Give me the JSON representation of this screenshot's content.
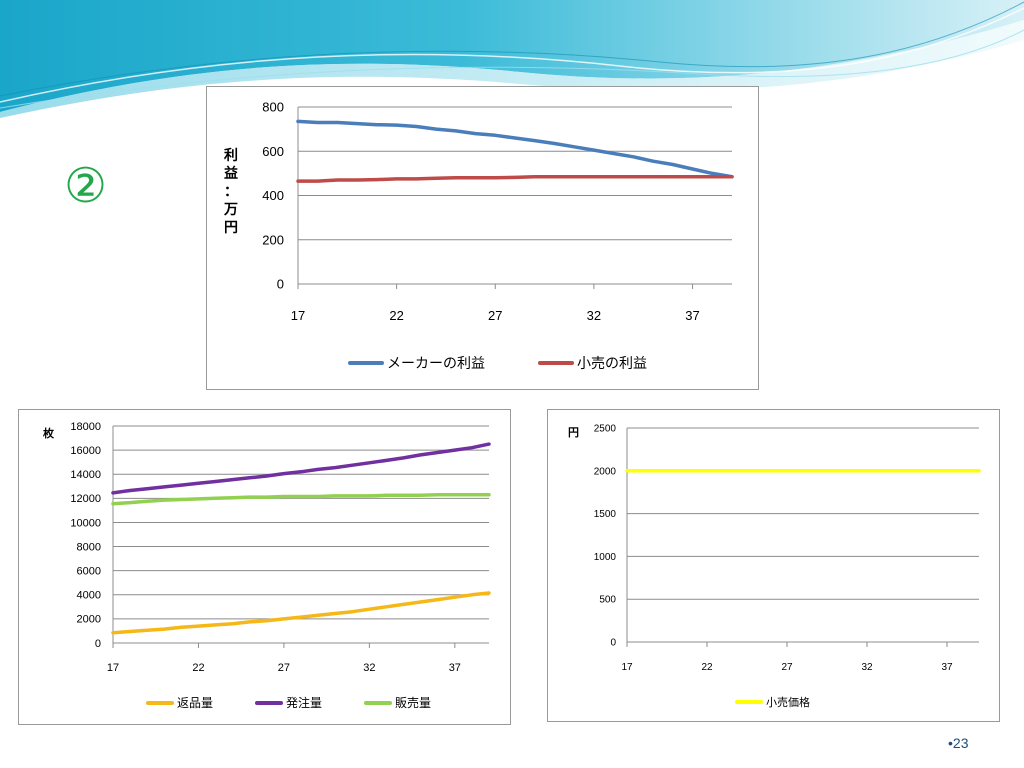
{
  "slide": {
    "marker": "②",
    "page_number": "•23",
    "accent_color": "#22a84a",
    "banner_colors": [
      "#1aa6c9",
      "#7fd3e6",
      "#d8f1f7"
    ]
  },
  "chart_data": [
    {
      "type": "line",
      "ylabel": "利益：万円",
      "ylim": [
        0,
        800
      ],
      "yticks": [
        0,
        200,
        400,
        600,
        800
      ],
      "xticks": [
        17,
        22,
        27,
        32,
        37
      ],
      "grid": true,
      "legend_position": "bottom",
      "x": [
        17,
        18,
        19,
        20,
        21,
        22,
        23,
        24,
        25,
        26,
        27,
        28,
        29,
        30,
        31,
        32,
        33,
        34,
        35,
        36,
        37,
        38,
        39
      ],
      "series": [
        {
          "name": "メーカーの利益",
          "color": "#4a7ebb",
          "values": [
            735,
            730,
            730,
            725,
            720,
            718,
            712,
            700,
            692,
            680,
            672,
            660,
            648,
            635,
            620,
            605,
            590,
            575,
            555,
            540,
            520,
            500,
            485
          ]
        },
        {
          "name": "小売の利益",
          "color": "#be4b48",
          "values": [
            465,
            465,
            470,
            470,
            472,
            475,
            475,
            478,
            480,
            480,
            480,
            482,
            485,
            485,
            485,
            485,
            485,
            485,
            485,
            485,
            485,
            485,
            485
          ]
        }
      ]
    },
    {
      "type": "line",
      "ylabel": "枚",
      "ylim": [
        0,
        18000
      ],
      "yticks": [
        0,
        2000,
        4000,
        6000,
        8000,
        10000,
        12000,
        14000,
        16000,
        18000
      ],
      "xticks": [
        17,
        22,
        27,
        32,
        37
      ],
      "grid": true,
      "legend_position": "bottom",
      "x": [
        17,
        18,
        19,
        20,
        21,
        22,
        23,
        24,
        25,
        26,
        27,
        28,
        29,
        30,
        31,
        32,
        33,
        34,
        35,
        36,
        37,
        38,
        39
      ],
      "series": [
        {
          "name": "返品量",
          "color": "#f5b817",
          "values": [
            850,
            950,
            1050,
            1150,
            1300,
            1400,
            1500,
            1600,
            1750,
            1850,
            2000,
            2150,
            2300,
            2450,
            2600,
            2800,
            3000,
            3200,
            3400,
            3600,
            3800,
            4000,
            4150
          ]
        },
        {
          "name": "発注量",
          "color": "#7030a0",
          "values": [
            12450,
            12650,
            12800,
            12950,
            13100,
            13250,
            13400,
            13550,
            13700,
            13850,
            14050,
            14200,
            14400,
            14550,
            14750,
            14950,
            15150,
            15350,
            15600,
            15800,
            16000,
            16200,
            16500
          ]
        },
        {
          "name": "販売量",
          "color": "#92d050",
          "values": [
            11550,
            11650,
            11750,
            11850,
            11900,
            11950,
            12000,
            12050,
            12100,
            12100,
            12150,
            12150,
            12150,
            12200,
            12200,
            12200,
            12250,
            12250,
            12250,
            12300,
            12300,
            12300,
            12300
          ]
        }
      ]
    },
    {
      "type": "line",
      "ylabel": "円",
      "ylim": [
        0,
        2500
      ],
      "yticks": [
        0,
        500,
        1000,
        1500,
        2000,
        2500
      ],
      "xticks": [
        17,
        22,
        27,
        32,
        37
      ],
      "grid": true,
      "legend_position": "bottom",
      "x": [
        17,
        18,
        19,
        20,
        21,
        22,
        23,
        24,
        25,
        26,
        27,
        28,
        29,
        30,
        31,
        32,
        33,
        34,
        35,
        36,
        37,
        38,
        39
      ],
      "series": [
        {
          "name": "小売価格",
          "color": "#ffff00",
          "values": [
            2000,
            2000,
            2000,
            2000,
            2000,
            2000,
            2000,
            2000,
            2000,
            2000,
            2000,
            2000,
            2000,
            2000,
            2000,
            2000,
            2000,
            2000,
            2000,
            2000,
            2000,
            2000,
            2000
          ]
        }
      ]
    }
  ]
}
